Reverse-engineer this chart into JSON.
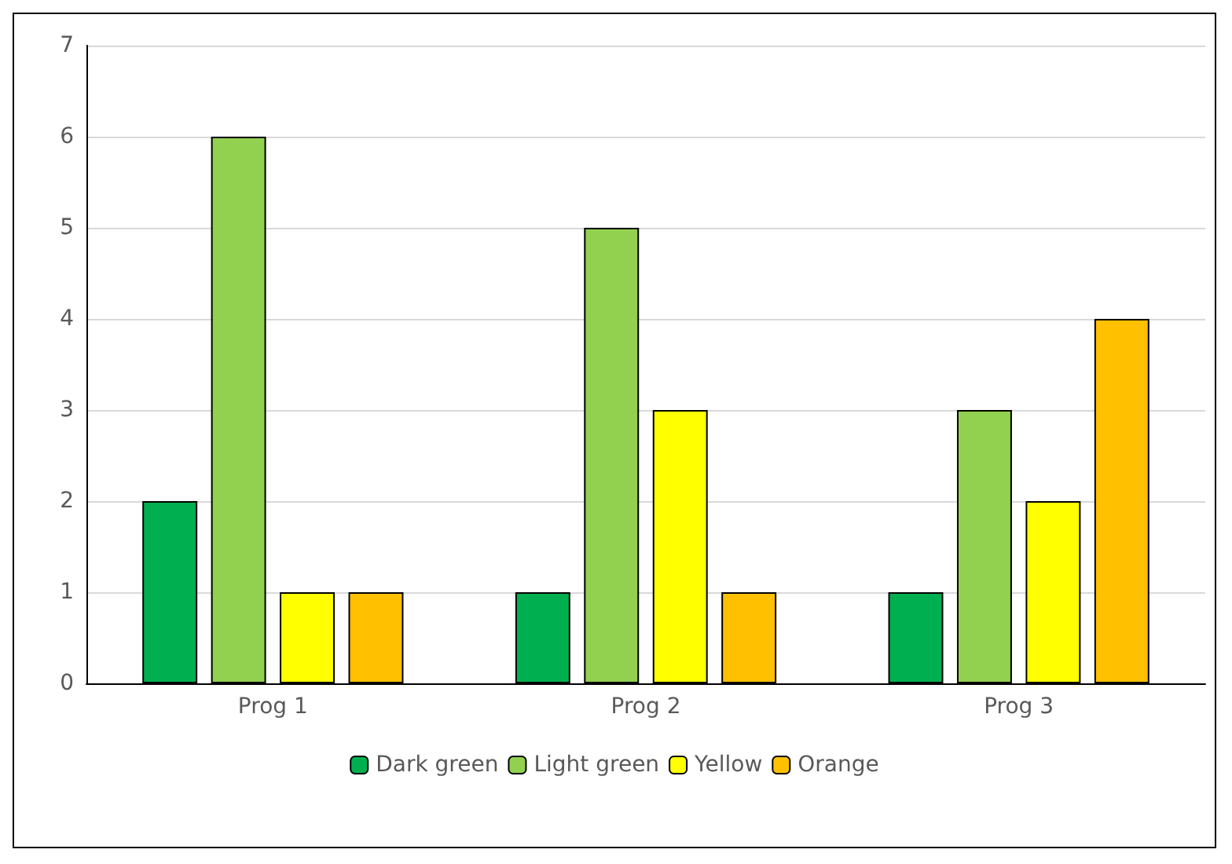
{
  "chart_data": {
    "type": "bar",
    "categories": [
      "Prog 1",
      "Prog 2",
      "Prog 3"
    ],
    "series": [
      {
        "name": "Dark green",
        "color": "#00b050",
        "values": [
          2,
          1,
          1
        ]
      },
      {
        "name": "Light green",
        "color": "#92d050",
        "values": [
          6,
          5,
          3
        ]
      },
      {
        "name": "Yellow",
        "color": "#ffff00",
        "values": [
          1,
          3,
          2
        ]
      },
      {
        "name": "Orange",
        "color": "#ffc000",
        "values": [
          1,
          1,
          4
        ]
      }
    ],
    "ylim": [
      0,
      7
    ],
    "yticks": [
      0,
      1,
      2,
      3,
      4,
      5,
      6,
      7
    ],
    "grid": "y",
    "legend": "bottom"
  }
}
